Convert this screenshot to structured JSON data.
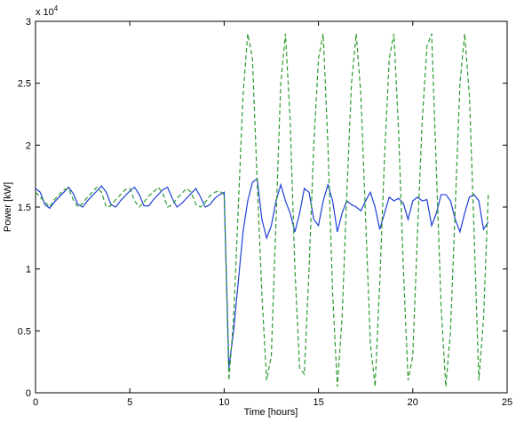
{
  "chart_data": {
    "type": "line",
    "x_label": "Time [hours]",
    "y_label": "Power [kW]",
    "y_scale_label": "x 10",
    "y_scale_exponent": "4",
    "xlim": [
      0,
      25
    ],
    "xticks": [
      0,
      5,
      10,
      15,
      20,
      25
    ],
    "ylim": [
      0,
      30000
    ],
    "yticks": [
      0,
      {
        "value": 5000,
        "label": "0.5"
      },
      {
        "value": 10000,
        "label": "1"
      },
      {
        "value": 15000,
        "label": "1.5"
      },
      {
        "value": 20000,
        "label": "2"
      },
      {
        "value": 25000,
        "label": "2.5"
      },
      {
        "value": 30000,
        "label": "3"
      }
    ],
    "x": [
      0,
      0.25,
      0.5,
      0.75,
      1,
      1.25,
      1.5,
      1.75,
      2,
      2.25,
      2.5,
      2.75,
      3,
      3.25,
      3.5,
      3.75,
      4,
      4.25,
      4.5,
      4.75,
      5,
      5.25,
      5.5,
      5.75,
      6,
      6.25,
      6.5,
      6.75,
      7,
      7.25,
      7.5,
      7.75,
      8,
      8.25,
      8.5,
      8.75,
      9,
      9.25,
      9.5,
      9.75,
      10,
      10.25,
      10.5,
      10.75,
      11,
      11.25,
      11.5,
      11.75,
      12,
      12.25,
      12.5,
      12.75,
      13,
      13.25,
      13.5,
      13.75,
      14,
      14.25,
      14.5,
      14.75,
      15,
      15.25,
      15.5,
      15.75,
      16,
      16.25,
      16.5,
      16.75,
      17,
      17.25,
      17.5,
      17.75,
      18,
      18.25,
      18.5,
      18.75,
      19,
      19.25,
      19.5,
      19.75,
      20,
      20.25,
      20.5,
      20.75,
      21,
      21.25,
      21.5,
      21.75,
      22,
      22.25,
      22.5,
      22.75,
      23,
      23.25,
      23.5,
      23.75,
      24
    ],
    "series": [
      {
        "color": "#1f3fd6",
        "dash": false,
        "values": [
          16500,
          16200,
          15200,
          14900,
          15400,
          15800,
          16200,
          16600,
          16100,
          15200,
          15000,
          15500,
          15900,
          16300,
          16700,
          16200,
          15200,
          15000,
          15500,
          15900,
          16300,
          16600,
          16000,
          15100,
          15100,
          15600,
          16000,
          16400,
          16600,
          15700,
          15000,
          15300,
          15700,
          16100,
          16500,
          15800,
          15000,
          15200,
          15700,
          16000,
          16200,
          2000,
          5000,
          9000,
          13000,
          15500,
          17000,
          17300,
          14000,
          12500,
          13500,
          15500,
          16800,
          15500,
          14500,
          13000,
          14500,
          16500,
          16200,
          14000,
          13500,
          15500,
          16800,
          15500,
          13000,
          14500,
          15500,
          15200,
          15000,
          14700,
          15500,
          16200,
          15000,
          13200,
          14500,
          15800,
          15500,
          15700,
          15300,
          14000,
          15500,
          15800,
          15500,
          15600,
          13500,
          14500,
          16000,
          16000,
          15500,
          14000,
          13000,
          14500,
          15800,
          16000,
          15500,
          13200,
          13800
        ]
      },
      {
        "color": "#2e9a2e",
        "dash": true,
        "values": [
          16200,
          15800,
          15400,
          15000,
          15600,
          16000,
          16400,
          16500,
          15600,
          15000,
          15300,
          15800,
          16200,
          16600,
          16200,
          15000,
          15100,
          15600,
          16000,
          16400,
          16500,
          15500,
          15000,
          15400,
          15900,
          16200,
          16600,
          16100,
          15000,
          15200,
          15700,
          16100,
          16500,
          16200,
          15200,
          15000,
          15400,
          15900,
          16200,
          16300,
          16000,
          1000,
          6000,
          15000,
          24000,
          29000,
          27000,
          17000,
          8000,
          1000,
          3000,
          14000,
          25000,
          29000,
          22000,
          10000,
          2000,
          1500,
          10000,
          20000,
          27000,
          29000,
          20000,
          8000,
          500,
          6000,
          16000,
          25000,
          29000,
          24000,
          14000,
          4000,
          500,
          9000,
          19000,
          27000,
          29000,
          21000,
          10000,
          1000,
          3000,
          13000,
          22000,
          28000,
          29000,
          18000,
          7000,
          500,
          5000,
          15000,
          25000,
          29000,
          24000,
          13000,
          1000,
          6000,
          16000
        ]
      }
    ]
  }
}
